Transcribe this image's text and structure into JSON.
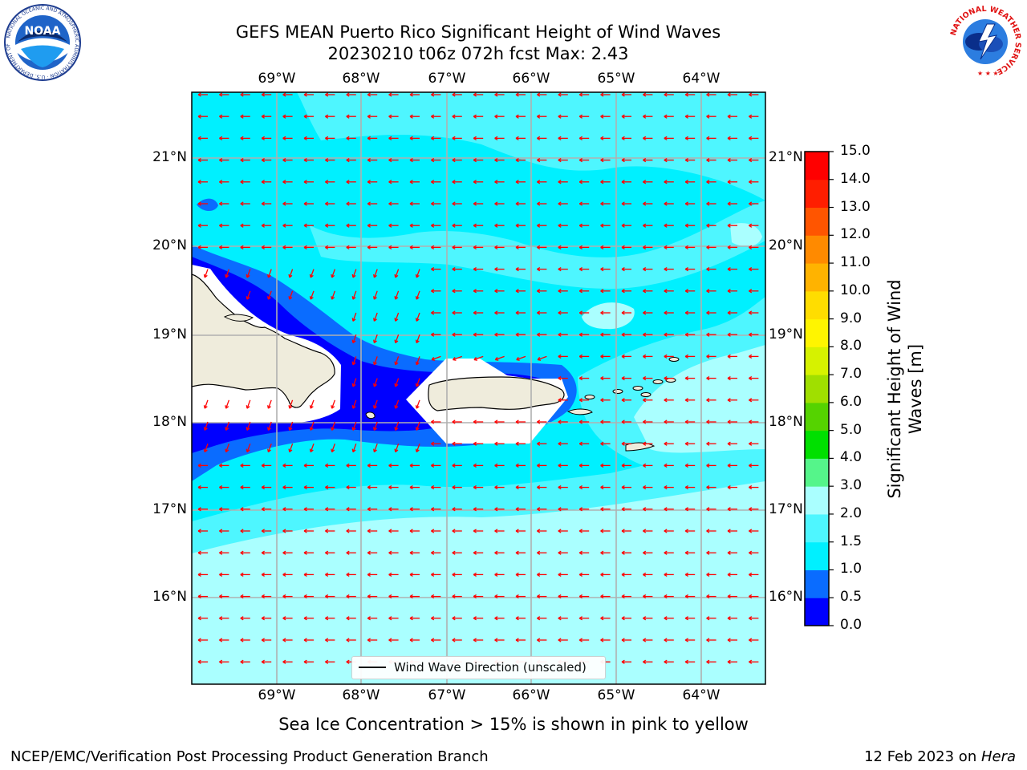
{
  "header": {
    "title_line1": "GEFS MEAN Puerto Rico Significant Height of Wind Waves",
    "title_line2": "20230210 t06z 072h fcst   Max: 2.43"
  },
  "logos": {
    "noaa_text": "NOAA",
    "noaa_ring": "NATIONAL OCEANIC AND ATMOSPHERIC ADMINISTRATION · U.S. DEPARTMENT OF COMMERCE",
    "nws_ring": "NATIONAL WEATHER SERVICE"
  },
  "map": {
    "lon_labels": [
      "69°W",
      "68°W",
      "67°W",
      "66°W",
      "65°W",
      "64°W"
    ],
    "lat_labels": [
      "21°N",
      "20°N",
      "19°N",
      "18°N",
      "17°N",
      "16°N"
    ],
    "legend_label": "Wind Wave Direction (unscaled)",
    "arrow_color": "#ff0000",
    "land_color": "#efecdc",
    "grid_color": "#b0b0b0"
  },
  "colorbar": {
    "label": "Significant Height of Wind Waves [m]",
    "ticks": [
      "0.0",
      "0.5",
      "1.0",
      "1.5",
      "2.0",
      "3.0",
      "4.0",
      "5.0",
      "6.0",
      "7.0",
      "8.0",
      "9.0",
      "10.0",
      "11.0",
      "12.0",
      "13.0",
      "14.0",
      "15.0"
    ],
    "colors": [
      "#0000ff",
      "#0a6cff",
      "#00f0ff",
      "#4ef6ff",
      "#aaffff",
      "#55f58a",
      "#00e000",
      "#55d300",
      "#a0df00",
      "#d6f200",
      "#fff500",
      "#ffdd00",
      "#ffb300",
      "#ff8a00",
      "#ff5500",
      "#ff1e00",
      "#ff0000"
    ]
  },
  "notes": {
    "sea_ice": "Sea Ice Concentration > 15% is shown in pink to yellow"
  },
  "footer": {
    "left": "NCEP/EMC/Verification Post Processing Product Generation Branch",
    "right_prefix": "12 Feb 2023 on ",
    "right_host": "Hera"
  }
}
